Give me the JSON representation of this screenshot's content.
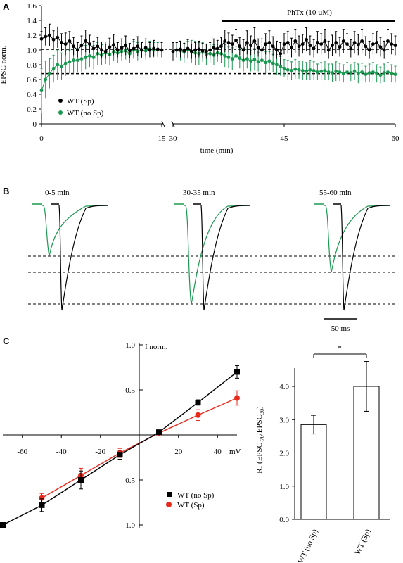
{
  "panel_labels": [
    "A",
    "B",
    "C"
  ],
  "chart_data": [
    {
      "panel": "A",
      "type": "scatter",
      "ylabel": "EPSC  norm.",
      "xlabel": "time (min)",
      "yticks": [
        "0",
        "0.2",
        "0.4",
        "0.6",
        "0.8",
        "1.0",
        "1.2",
        "1.4",
        "1.6"
      ],
      "xticks": [
        "0",
        "15",
        "30",
        "45",
        "60"
      ],
      "ylim": [
        0,
        1.6
      ],
      "xlim": [
        0,
        60
      ],
      "axis_break": [
        15.5,
        29.5
      ],
      "annotation": "PhTx (10 µM)",
      "annotation_range": [
        37,
        60
      ],
      "reference_lines": [
        1.01,
        0.68
      ],
      "series": [
        {
          "name": "WT (Sp)",
          "color": "#000000",
          "x": [
            0,
            0.5,
            1,
            1.5,
            2,
            2.5,
            3,
            3.5,
            4,
            4.5,
            5,
            5.5,
            6,
            6.5,
            7,
            7.5,
            8,
            8.5,
            9,
            9.5,
            10,
            10.5,
            11,
            11.5,
            12,
            12.5,
            13,
            13.5,
            14,
            14.5,
            15,
            30,
            30.5,
            31,
            31.5,
            32,
            32.5,
            33,
            33.5,
            34,
            34.5,
            35,
            35.5,
            36,
            36.5,
            37,
            37.5,
            38,
            38.5,
            39,
            39.5,
            40,
            40.5,
            41,
            41.5,
            42,
            42.5,
            43,
            43.5,
            44,
            44.5,
            45,
            45.5,
            46,
            46.5,
            47,
            47.5,
            48,
            48.5,
            49,
            49.5,
            50,
            50.5,
            51,
            51.5,
            52,
            52.5,
            53,
            53.5,
            54,
            54.5,
            55,
            55.5,
            56,
            56.5,
            57,
            57.5,
            58,
            58.5,
            59,
            59.5,
            60
          ],
          "y": [
            1.15,
            1.18,
            1.2,
            1.14,
            1.17,
            1.1,
            1.08,
            1.12,
            1.05,
            1.0,
            1.06,
            1.12,
            1.08,
            1.02,
            1.05,
            1.0,
            0.98,
            1.04,
            1.07,
            1.0,
            1.03,
            1.06,
            0.99,
            1.02,
            1.05,
            1.0,
            1.03,
            1.0,
            1.02,
            1.01,
            1.0,
            0.98,
            1.0,
            1.01,
            0.99,
            1.02,
            0.98,
            1.0,
            1.01,
            0.99,
            0.98,
            1.0,
            1.03,
            1.02,
            1.05,
            1.12,
            1.1,
            1.08,
            1.13,
            1.05,
            1.0,
            1.1,
            1.06,
            1.12,
            1.03,
            1.0,
            1.08,
            1.1,
            1.05,
            1.0,
            0.95,
            1.08,
            1.1,
            1.03,
            1.12,
            1.05,
            1.08,
            1.14,
            1.06,
            1.02,
            1.1,
            1.08,
            1.12,
            1.0,
            1.06,
            1.1,
            1.04,
            1.12,
            1.08,
            1.02,
            1.1,
            1.07,
            1.12,
            1.05,
            1.0,
            1.08,
            1.1,
            1.04,
            1.0,
            1.12,
            1.08,
            1.06
          ],
          "err": [
            0.1,
            0.12,
            0.15,
            0.12,
            0.14,
            0.12,
            0.15,
            0.13,
            0.12,
            0.1,
            0.13,
            0.15,
            0.12,
            0.1,
            0.12,
            0.11,
            0.1,
            0.12,
            0.14,
            0.1,
            0.12,
            0.13,
            0.1,
            0.12,
            0.13,
            0.1,
            0.12,
            0.1,
            0.11,
            0.1,
            0.1,
            0.12,
            0.1,
            0.11,
            0.1,
            0.12,
            0.1,
            0.1,
            0.11,
            0.1,
            0.1,
            0.1,
            0.12,
            0.11,
            0.12,
            0.15,
            0.13,
            0.12,
            0.15,
            0.12,
            0.14,
            0.16,
            0.13,
            0.18,
            0.12,
            0.15,
            0.14,
            0.16,
            0.13,
            0.12,
            0.15,
            0.14,
            0.15,
            0.13,
            0.16,
            0.14,
            0.13,
            0.16,
            0.13,
            0.12,
            0.15,
            0.14,
            0.16,
            0.12,
            0.14,
            0.15,
            0.13,
            0.16,
            0.14,
            0.12,
            0.15,
            0.14,
            0.16,
            0.13,
            0.12,
            0.14,
            0.15,
            0.13,
            0.12,
            0.16,
            0.14,
            0.13
          ]
        },
        {
          "name": "WT (no Sp)",
          "color": "#1a9850",
          "x": [
            0,
            0.5,
            1,
            1.5,
            2,
            2.5,
            3,
            3.5,
            4,
            4.5,
            5,
            5.5,
            6,
            6.5,
            7,
            7.5,
            8,
            8.5,
            9,
            9.5,
            10,
            10.5,
            11,
            11.5,
            12,
            12.5,
            13,
            13.5,
            14,
            14.5,
            15,
            30,
            30.5,
            31,
            31.5,
            32,
            32.5,
            33,
            33.5,
            34,
            34.5,
            35,
            35.5,
            36,
            36.5,
            37,
            37.5,
            38,
            38.5,
            39,
            39.5,
            40,
            40.5,
            41,
            41.5,
            42,
            42.5,
            43,
            43.5,
            44,
            44.5,
            45,
            45.5,
            46,
            46.5,
            47,
            47.5,
            48,
            48.5,
            49,
            49.5,
            50,
            50.5,
            51,
            51.5,
            52,
            52.5,
            53,
            53.5,
            54,
            54.5,
            55,
            55.5,
            56,
            56.5,
            57,
            57.5,
            58,
            58.5,
            59,
            59.5,
            60
          ],
          "y": [
            0.45,
            0.6,
            0.68,
            0.75,
            0.8,
            0.78,
            0.82,
            0.84,
            0.86,
            0.86,
            0.88,
            0.9,
            0.92,
            0.9,
            0.95,
            0.93,
            0.96,
            0.94,
            0.98,
            0.96,
            0.98,
            0.99,
            0.95,
            1.0,
            0.98,
            1.0,
            0.99,
            1.01,
            1.0,
            1.0,
            1.0,
            0.98,
            1.0,
            0.99,
            0.97,
            1.0,
            0.98,
            0.96,
            0.95,
            0.97,
            0.94,
            0.95,
            0.93,
            0.96,
            0.95,
            0.92,
            0.9,
            0.88,
            0.92,
            0.89,
            0.86,
            0.88,
            0.85,
            0.87,
            0.84,
            0.86,
            0.83,
            0.85,
            0.82,
            0.8,
            0.78,
            0.75,
            0.73,
            0.72,
            0.74,
            0.73,
            0.72,
            0.71,
            0.73,
            0.72,
            0.7,
            0.71,
            0.72,
            0.7,
            0.69,
            0.71,
            0.7,
            0.68,
            0.7,
            0.69,
            0.71,
            0.68,
            0.7,
            0.67,
            0.69,
            0.7,
            0.68,
            0.66,
            0.69,
            0.7,
            0.68,
            0.67
          ],
          "err": [
            0.3,
            0.25,
            0.2,
            0.18,
            0.2,
            0.18,
            0.17,
            0.16,
            0.18,
            0.16,
            0.17,
            0.16,
            0.15,
            0.16,
            0.15,
            0.14,
            0.15,
            0.14,
            0.13,
            0.14,
            0.13,
            0.12,
            0.13,
            0.12,
            0.12,
            0.11,
            0.12,
            0.11,
            0.1,
            0.1,
            0.1,
            0.12,
            0.1,
            0.13,
            0.14,
            0.12,
            0.15,
            0.16,
            0.15,
            0.13,
            0.14,
            0.13,
            0.14,
            0.12,
            0.13,
            0.15,
            0.14,
            0.15,
            0.13,
            0.14,
            0.15,
            0.13,
            0.14,
            0.15,
            0.13,
            0.14,
            0.15,
            0.13,
            0.12,
            0.14,
            0.13,
            0.12,
            0.13,
            0.12,
            0.13,
            0.12,
            0.13,
            0.12,
            0.13,
            0.12,
            0.11,
            0.12,
            0.13,
            0.11,
            0.12,
            0.13,
            0.12,
            0.12,
            0.13,
            0.11,
            0.12,
            0.13,
            0.12,
            0.11,
            0.12,
            0.13,
            0.12,
            0.11,
            0.12,
            0.13,
            0.12,
            0.11
          ]
        }
      ]
    },
    {
      "panel": "B",
      "type": "line",
      "epochs": [
        "0-5 min",
        "30-35 min",
        "55-60 min"
      ],
      "scale_bar": "50 ms",
      "series": [
        {
          "name": "WT (no Sp)",
          "color": "#1a9850",
          "peak_norm": [
            0.58,
            0.95,
            0.8
          ]
        },
        {
          "name": "WT (Sp)",
          "color": "#000000",
          "peak_norm": [
            1.0,
            1.0,
            1.0
          ]
        }
      ]
    },
    {
      "panel": "C",
      "type": "line",
      "xlabel": "mV",
      "ylabel": "I norm.",
      "xticks": [
        "-60",
        "-40",
        "-20",
        "20",
        "40"
      ],
      "yticks": [
        "1.0",
        "0.5",
        "-0.5",
        "-1.0"
      ],
      "xlim": [
        -70,
        50
      ],
      "ylim": [
        -1.0,
        1.0
      ],
      "series": [
        {
          "name": "WT (no Sp)",
          "color": "#000000",
          "marker": "square",
          "x": [
            -70,
            -50,
            -30,
            -10,
            10,
            30,
            50
          ],
          "y": [
            -1.0,
            -0.78,
            -0.5,
            -0.22,
            0.03,
            0.36,
            0.7
          ],
          "err": [
            0,
            0.07,
            0.1,
            0.05,
            0.02,
            0.03,
            0.07
          ]
        },
        {
          "name": "WT (Sp)",
          "color": "#e8291c",
          "marker": "circle",
          "x": [
            -50,
            -30,
            -10,
            10,
            30,
            50
          ],
          "y": [
            -0.7,
            -0.45,
            -0.2,
            0.02,
            0.22,
            0.41
          ],
          "err": [
            0.05,
            0.08,
            0.05,
            0.02,
            0.06,
            0.08
          ]
        }
      ]
    },
    {
      "panel": "C",
      "type": "bar",
      "ylabel": "RI (EPSC-70/EPSC30)",
      "yticks": [
        "0.0",
        "1.0",
        "2.0",
        "3.0",
        "4.0"
      ],
      "ylim": [
        0,
        4.8
      ],
      "categories": [
        "WT (no Sp)",
        "WT (Sp)"
      ],
      "values": [
        2.85,
        4.0
      ],
      "err": [
        0.28,
        0.75
      ],
      "significance": "*"
    }
  ]
}
